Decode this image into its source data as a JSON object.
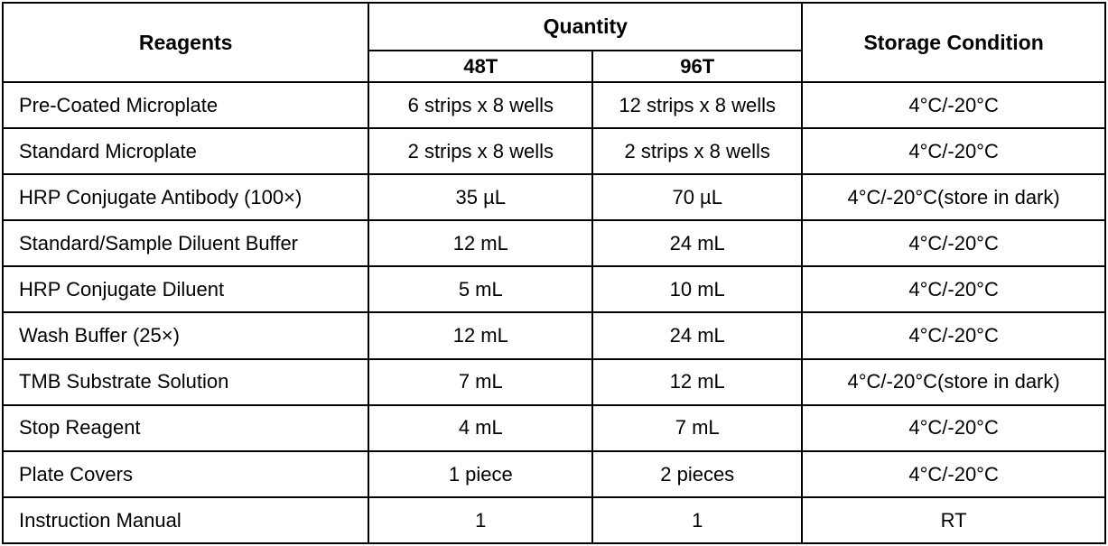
{
  "headers": {
    "reagents": "Reagents",
    "quantity": "Quantity",
    "sub_48t": "48T",
    "sub_96t": "96T",
    "storage": "Storage Condition"
  },
  "rows": [
    {
      "reagent": "Pre-Coated Microplate",
      "q48": "6 strips x 8 wells",
      "q96": "12 strips x 8 wells",
      "storage": "4°C/-20°C"
    },
    {
      "reagent": "Standard Microplate",
      "q48": "2 strips x 8 wells",
      "q96": "2 strips x 8 wells",
      "storage": "4°C/-20°C"
    },
    {
      "reagent": "HRP Conjugate Antibody (100×)",
      "q48": "35 µL",
      "q96": "70 µL",
      "storage": "4°C/-20°C(store in dark)"
    },
    {
      "reagent": "Standard/Sample Diluent Buffer",
      "q48": "12 mL",
      "q96": "24 mL",
      "storage": "4°C/-20°C"
    },
    {
      "reagent": "HRP Conjugate Diluent",
      "q48": "5 mL",
      "q96": "10 mL",
      "storage": "4°C/-20°C"
    },
    {
      "reagent": "Wash Buffer (25×)",
      "q48": "12 mL",
      "q96": "24 mL",
      "storage": "4°C/-20°C"
    },
    {
      "reagent": "TMB Substrate Solution",
      "q48": "7 mL",
      "q96": "12 mL",
      "storage": "4°C/-20°C(store in dark)"
    },
    {
      "reagent": "Stop Reagent",
      "q48": "4 mL",
      "q96": "7 mL",
      "storage": "4°C/-20°C"
    },
    {
      "reagent": "Plate Covers",
      "q48": "1 piece",
      "q96": "2 pieces",
      "storage": "4°C/-20°C"
    },
    {
      "reagent": "Instruction Manual",
      "q48": "1",
      "q96": "1",
      "storage": "RT"
    }
  ],
  "colors": {
    "border": "#000000",
    "text": "#000000",
    "background": "#ffffff"
  }
}
